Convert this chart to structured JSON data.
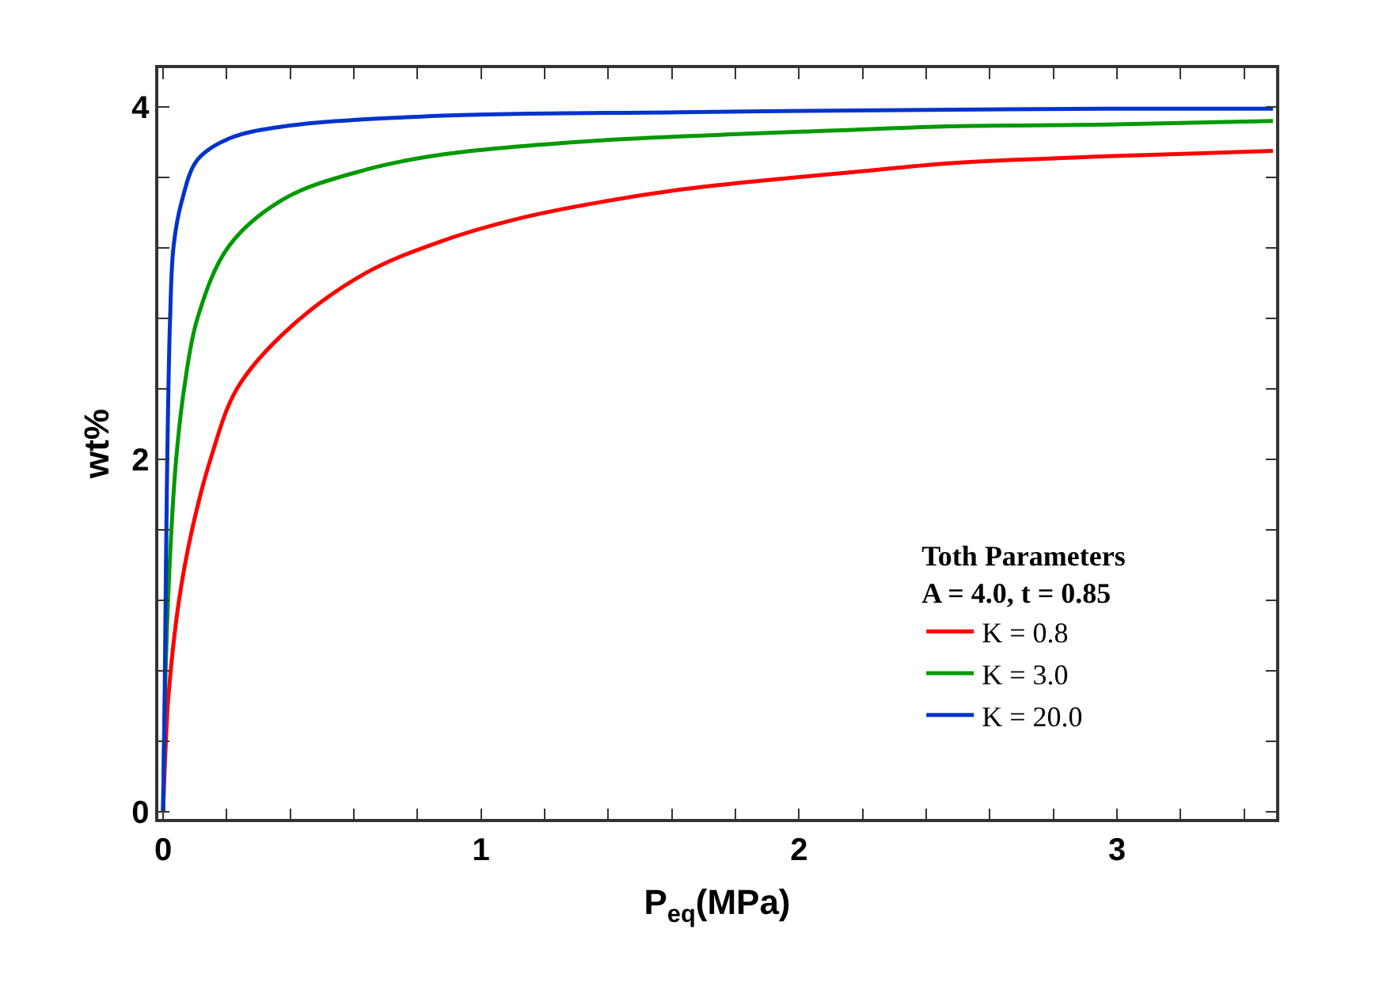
{
  "chart_data": {
    "type": "line",
    "xlabel": "P$_{eq}$(MPa)",
    "ylabel": "wt%",
    "legend_title": "Toth Parameters\nA = 4.0, t = 0.85",
    "legend": "bottom right",
    "marker": "none",
    "line_style": "solid",
    "xlim": [
      -0.015,
      3.5
    ],
    "ylim": [
      -0.04,
      4.22
    ],
    "xticks": [
      0,
      {
        "value": 0.2,
        "label": null
      },
      {
        "value": 0.4,
        "label": null
      },
      {
        "value": 0.6,
        "label": null
      },
      {
        "value": 0.8,
        "label": null
      },
      1,
      {
        "value": 1.2,
        "label": null
      },
      {
        "value": 1.4,
        "label": null
      },
      {
        "value": 1.6,
        "label": null
      },
      {
        "value": 1.8,
        "label": null
      },
      2,
      {
        "value": 2.2,
        "label": null
      },
      {
        "value": 2.4,
        "label": null
      },
      {
        "value": 2.6,
        "label": null
      },
      {
        "value": 2.8,
        "label": null
      },
      3,
      {
        "value": 3.2,
        "label": null
      },
      {
        "value": 3.4,
        "label": null
      }
    ],
    "yticks": [
      0,
      {
        "value": 0.4,
        "label": null
      },
      {
        "value": 0.8,
        "label": null
      },
      {
        "value": 1.2,
        "label": null
      },
      {
        "value": 1.6,
        "label": null
      },
      2,
      {
        "value": 2.4,
        "label": null
      },
      {
        "value": 2.8,
        "label": null
      },
      {
        "value": 3.2,
        "label": null
      },
      {
        "value": 3.6,
        "label": null
      },
      4
    ],
    "series": [
      {
        "name": "K = 0.8",
        "color": "#ff0000",
        "x": [
          0,
          0.008,
          0.017,
          0.05,
          0.091,
          0.149,
          0.232,
          0.382,
          0.63,
          0.879,
          1.127,
          1.376,
          1.624,
          1.873,
          2.171,
          2.471,
          2.969,
          3.49
        ],
        "values": [
          0,
          0.37,
          0.66,
          1.2,
          1.6,
          2.0,
          2.4,
          2.72,
          3.05,
          3.24,
          3.37,
          3.46,
          3.53,
          3.58,
          3.63,
          3.68,
          3.72,
          3.75
        ]
      },
      {
        "name": "K = 3.0",
        "color": "#009900",
        "x": [
          0,
          0.008,
          0.025,
          0.041,
          0.066,
          0.108,
          0.207,
          0.382,
          0.63,
          0.879,
          1.376,
          1.873,
          2.171,
          2.471,
          2.969,
          3.49
        ],
        "values": [
          0,
          0.81,
          1.56,
          2.0,
          2.4,
          2.8,
          3.21,
          3.48,
          3.64,
          3.73,
          3.81,
          3.85,
          3.87,
          3.89,
          3.9,
          3.92
        ]
      },
      {
        "name": "K = 20.0",
        "color": "#0033cc",
        "x": [
          0,
          0.005,
          0.012,
          0.022,
          0.033,
          0.058,
          0.108,
          0.207,
          0.382,
          0.879,
          1.624,
          2.171,
          2.969,
          3.49
        ],
        "values": [
          0,
          0.66,
          1.86,
          2.8,
          3.21,
          3.46,
          3.7,
          3.82,
          3.89,
          3.95,
          3.97,
          3.98,
          3.99,
          3.99
        ]
      }
    ]
  }
}
